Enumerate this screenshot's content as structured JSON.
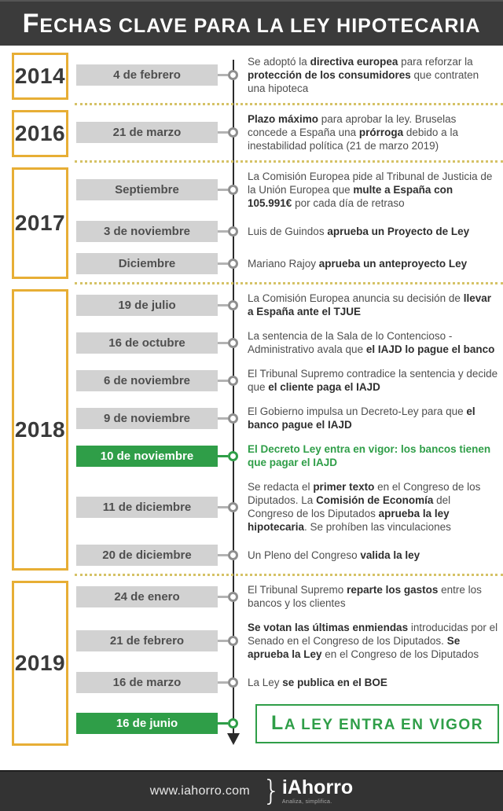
{
  "title": "Fechas clave para la ley hipotecaria",
  "colors": {
    "header_bg": "#3b3b3b",
    "accent_gold": "#e7ae35",
    "pill_gray": "#d2d2d2",
    "accent_green": "#2f9e48",
    "dotted_separator": "#d5c266",
    "timeline_line": "#2b2b2b"
  },
  "icons": {
    "timeline_node": "circle",
    "timeline_end": "arrow-down"
  },
  "sections": [
    {
      "year": "2014",
      "events": [
        {
          "date": "4 de febrero",
          "highlight": false,
          "segments": [
            {
              "t": "Se adoptó la ",
              "b": false
            },
            {
              "t": "directiva europea",
              "b": true
            },
            {
              "t": " para reforzar la ",
              "b": false
            },
            {
              "t": "protección de los consumidores",
              "b": true
            },
            {
              "t": " que contraten una hipoteca",
              "b": false
            }
          ]
        }
      ]
    },
    {
      "year": "2016",
      "events": [
        {
          "date": "21 de marzo",
          "highlight": false,
          "segments": [
            {
              "t": "Plazo máximo",
              "b": true
            },
            {
              "t": " para aprobar la ley. Bruselas concede a España una ",
              "b": false
            },
            {
              "t": "prórroga",
              "b": true
            },
            {
              "t": " debido a la inestabilidad política (21 de marzo 2019)",
              "b": false
            }
          ]
        }
      ]
    },
    {
      "year": "2017",
      "events": [
        {
          "date": "Septiembre",
          "highlight": false,
          "segments": [
            {
              "t": "La Comisión Europea pide al Tribunal de Justicia de la Unión Europea que ",
              "b": false
            },
            {
              "t": "multe a España con 105.991€",
              "b": true
            },
            {
              "t": " por cada día de retraso",
              "b": false
            }
          ]
        },
        {
          "date": "3 de noviembre",
          "highlight": false,
          "segments": [
            {
              "t": "Luis de Guindos ",
              "b": false
            },
            {
              "t": "aprueba un Proyecto de Ley",
              "b": true
            }
          ]
        },
        {
          "date": "Diciembre",
          "highlight": false,
          "segments": [
            {
              "t": "Mariano Rajoy ",
              "b": false
            },
            {
              "t": "aprueba un anteproyecto Ley",
              "b": true
            }
          ]
        }
      ]
    },
    {
      "year": "2018",
      "events": [
        {
          "date": "19 de julio",
          "highlight": false,
          "segments": [
            {
              "t": "La Comisión Europea anuncia su decisión de ",
              "b": false
            },
            {
              "t": "llevar a España ante el TJUE",
              "b": true
            }
          ]
        },
        {
          "date": "16 de octubre",
          "highlight": false,
          "segments": [
            {
              "t": "La sentencia de la Sala de lo Contencioso - Administrativo avala que ",
              "b": false
            },
            {
              "t": "el IAJD lo pague el banco",
              "b": true
            }
          ]
        },
        {
          "date": "6 de noviembre",
          "highlight": false,
          "segments": [
            {
              "t": "El Tribunal Supremo contradice la sentencia y decide que ",
              "b": false
            },
            {
              "t": "el cliente paga el IAJD",
              "b": true
            }
          ]
        },
        {
          "date": "9 de noviembre",
          "highlight": false,
          "segments": [
            {
              "t": "El Gobierno impulsa un Decreto-Ley para que ",
              "b": false
            },
            {
              "t": "el banco pague el IAJD",
              "b": true
            }
          ]
        },
        {
          "date": "10 de noviembre",
          "highlight": true,
          "segments": [
            {
              "t": "El Decreto Ley entra en vigor: los bancos tienen que pagar el IAJD",
              "b": true
            }
          ]
        },
        {
          "date": "11 de diciembre",
          "highlight": false,
          "segments": [
            {
              "t": "Se redacta el ",
              "b": false
            },
            {
              "t": "primer texto",
              "b": true
            },
            {
              "t": " en el Congreso de los Diputados. La ",
              "b": false
            },
            {
              "t": "Comisión de Economía",
              "b": true
            },
            {
              "t": " del Congreso de los Diputados ",
              "b": false
            },
            {
              "t": "aprueba la ley hipotecaria",
              "b": true
            },
            {
              "t": ". Se prohíben las vinculaciones",
              "b": false
            }
          ]
        },
        {
          "date": "20 de diciembre",
          "highlight": false,
          "segments": [
            {
              "t": "Un Pleno del Congreso ",
              "b": false
            },
            {
              "t": "valida la ley",
              "b": true
            }
          ]
        }
      ]
    },
    {
      "year": "2019",
      "events": [
        {
          "date": "24 de enero",
          "highlight": false,
          "segments": [
            {
              "t": "El Tribunal Supremo ",
              "b": false
            },
            {
              "t": "reparte los gastos",
              "b": true
            },
            {
              "t": " entre los bancos y los clientes",
              "b": false
            }
          ]
        },
        {
          "date": "21 de febrero",
          "highlight": false,
          "segments": [
            {
              "t": "Se votan las últimas enmiendas",
              "b": true
            },
            {
              "t": " introducidas por el Senado en el Congreso de los Diputados. ",
              "b": false
            },
            {
              "t": "Se aprueba la Ley",
              "b": true
            },
            {
              "t": " en el Congreso de los Diputados",
              "b": false
            }
          ]
        },
        {
          "date": "16 de marzo",
          "highlight": false,
          "segments": [
            {
              "t": "La Ley ",
              "b": false
            },
            {
              "t": "se publica en el BOE",
              "b": true
            }
          ]
        },
        {
          "date": "16 de junio",
          "highlight": true,
          "box": true,
          "box_label": "La ley entra en vigor",
          "segments": []
        }
      ]
    }
  ],
  "footer": {
    "url": "www.iahorro.com",
    "logo_brace": "}",
    "logo_name": "iAhorro",
    "tagline": "Analiza, simplifica."
  }
}
